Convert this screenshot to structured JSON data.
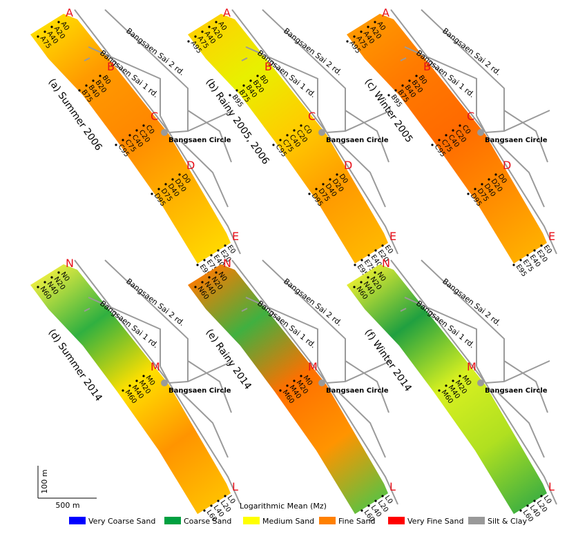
{
  "panels": [
    {
      "caption": "(a) Summer 2006",
      "surface_colors": [
        "#ffe000",
        "#ff9a00",
        "#ff8800",
        "#ffb000",
        "#ffd800"
      ],
      "transects": [
        {
          "letter": "A",
          "stations": [
            "A0",
            "A20",
            "A40",
            "A75"
          ]
        },
        {
          "letter": "B",
          "stations": [
            "B0",
            "B20",
            "B40",
            "B75"
          ]
        },
        {
          "letter": "C",
          "stations": [
            "C0",
            "C20",
            "C40",
            "C75",
            "C95"
          ]
        },
        {
          "letter": "D",
          "stations": [
            "D0",
            "D20",
            "D40",
            "D75",
            "D95"
          ]
        },
        {
          "letter": "E",
          "stations": [
            "E0",
            "E20",
            "E40",
            "E75",
            "E95"
          ]
        }
      ]
    },
    {
      "caption": "(b) Rainy 2005, 2006",
      "surface_colors": [
        "#ffd000",
        "#e8f000",
        "#ffcc00",
        "#ff9a00",
        "#ffb800"
      ],
      "transects": [
        {
          "letter": "A",
          "stations": [
            "A0",
            "A20",
            "A40",
            "A75",
            "A95"
          ]
        },
        {
          "letter": "B",
          "stations": [
            "B0",
            "B20",
            "B40",
            "B75",
            "B95"
          ]
        },
        {
          "letter": "C",
          "stations": [
            "C0",
            "C20",
            "C40",
            "C75",
            "C95"
          ]
        },
        {
          "letter": "D",
          "stations": [
            "D0",
            "D20",
            "D40",
            "D75",
            "D95"
          ]
        },
        {
          "letter": "E",
          "stations": [
            "E0",
            "E20",
            "E40",
            "E75",
            "E95"
          ]
        }
      ]
    },
    {
      "caption": "(c) Winter 2005",
      "surface_colors": [
        "#ff9a00",
        "#ff7a00",
        "#ff6a00",
        "#ff8a00",
        "#ffb000"
      ],
      "transects": [
        {
          "letter": "A",
          "stations": [
            "A0",
            "A20",
            "A40",
            "A75",
            "A95"
          ]
        },
        {
          "letter": "B",
          "stations": [
            "B0",
            "B20",
            "B40",
            "B75",
            "B95"
          ]
        },
        {
          "letter": "C",
          "stations": [
            "C0",
            "C20",
            "C40",
            "C75",
            "C95"
          ]
        },
        {
          "letter": "D",
          "stations": [
            "D0",
            "D20",
            "D40",
            "D75",
            "D95"
          ]
        },
        {
          "letter": "E",
          "stations": [
            "E0",
            "E20",
            "E40",
            "E75",
            "E95"
          ]
        }
      ]
    },
    {
      "caption": "(d) Summer 2014",
      "surface_colors": [
        "#f4f040",
        "#30b040",
        "#ffe000",
        "#ff9400",
        "#ffc000"
      ],
      "transects": [
        {
          "letter": "N",
          "stations": [
            "N0",
            "N20",
            "N40",
            "N60"
          ]
        },
        {
          "letter": "M",
          "stations": [
            "M0",
            "M20",
            "M40",
            "M60"
          ]
        },
        {
          "letter": "L",
          "stations": [
            "L0",
            "L20",
            "L40",
            "L60"
          ]
        }
      ]
    },
    {
      "caption": "(e) Rainy 2014",
      "surface_colors": [
        "#ff7a00",
        "#40b040",
        "#ff7000",
        "#ff9400",
        "#60c040"
      ],
      "transects": [
        {
          "letter": "N",
          "stations": [
            "N0",
            "N20",
            "N40",
            "N60"
          ]
        },
        {
          "letter": "M",
          "stations": [
            "M0",
            "M20",
            "M40",
            "M60"
          ]
        },
        {
          "letter": "L",
          "stations": [
            "L0",
            "L20",
            "L40",
            "L60"
          ]
        }
      ]
    },
    {
      "caption": "(f) Winter 2014",
      "surface_colors": [
        "#f0f030",
        "#20a040",
        "#d8f020",
        "#b0e020",
        "#40b040"
      ],
      "transects": [
        {
          "letter": "N",
          "stations": [
            "N0",
            "N20",
            "N40",
            "N60"
          ]
        },
        {
          "letter": "M",
          "stations": [
            "M0",
            "M20",
            "M40",
            "M60"
          ]
        },
        {
          "letter": "L",
          "stations": [
            "L0",
            "L20",
            "L40",
            "L60"
          ]
        }
      ]
    }
  ],
  "map_labels": {
    "road_2": "Bangsaen Sai 2 rd.",
    "road_1": "Bangsaen Sai 1 rd.",
    "landmark": "Bangsaen Circle"
  },
  "scale": {
    "vertical": "100 m",
    "horizontal": "500 m"
  },
  "legend": {
    "title": "Logarithmic Mean (Mz)",
    "items": [
      {
        "label": "Very Coarse Sand",
        "color": "#0000ff"
      },
      {
        "label": "Coarse Sand",
        "color": "#00a040"
      },
      {
        "label": "Medium Sand",
        "color": "#ffff00"
      },
      {
        "label": "Fine Sand",
        "color": "#ff8000"
      },
      {
        "label": "Very Fine Sand",
        "color": "#ff0000"
      },
      {
        "label": "Silt & Clay",
        "color": "#999999"
      }
    ]
  }
}
